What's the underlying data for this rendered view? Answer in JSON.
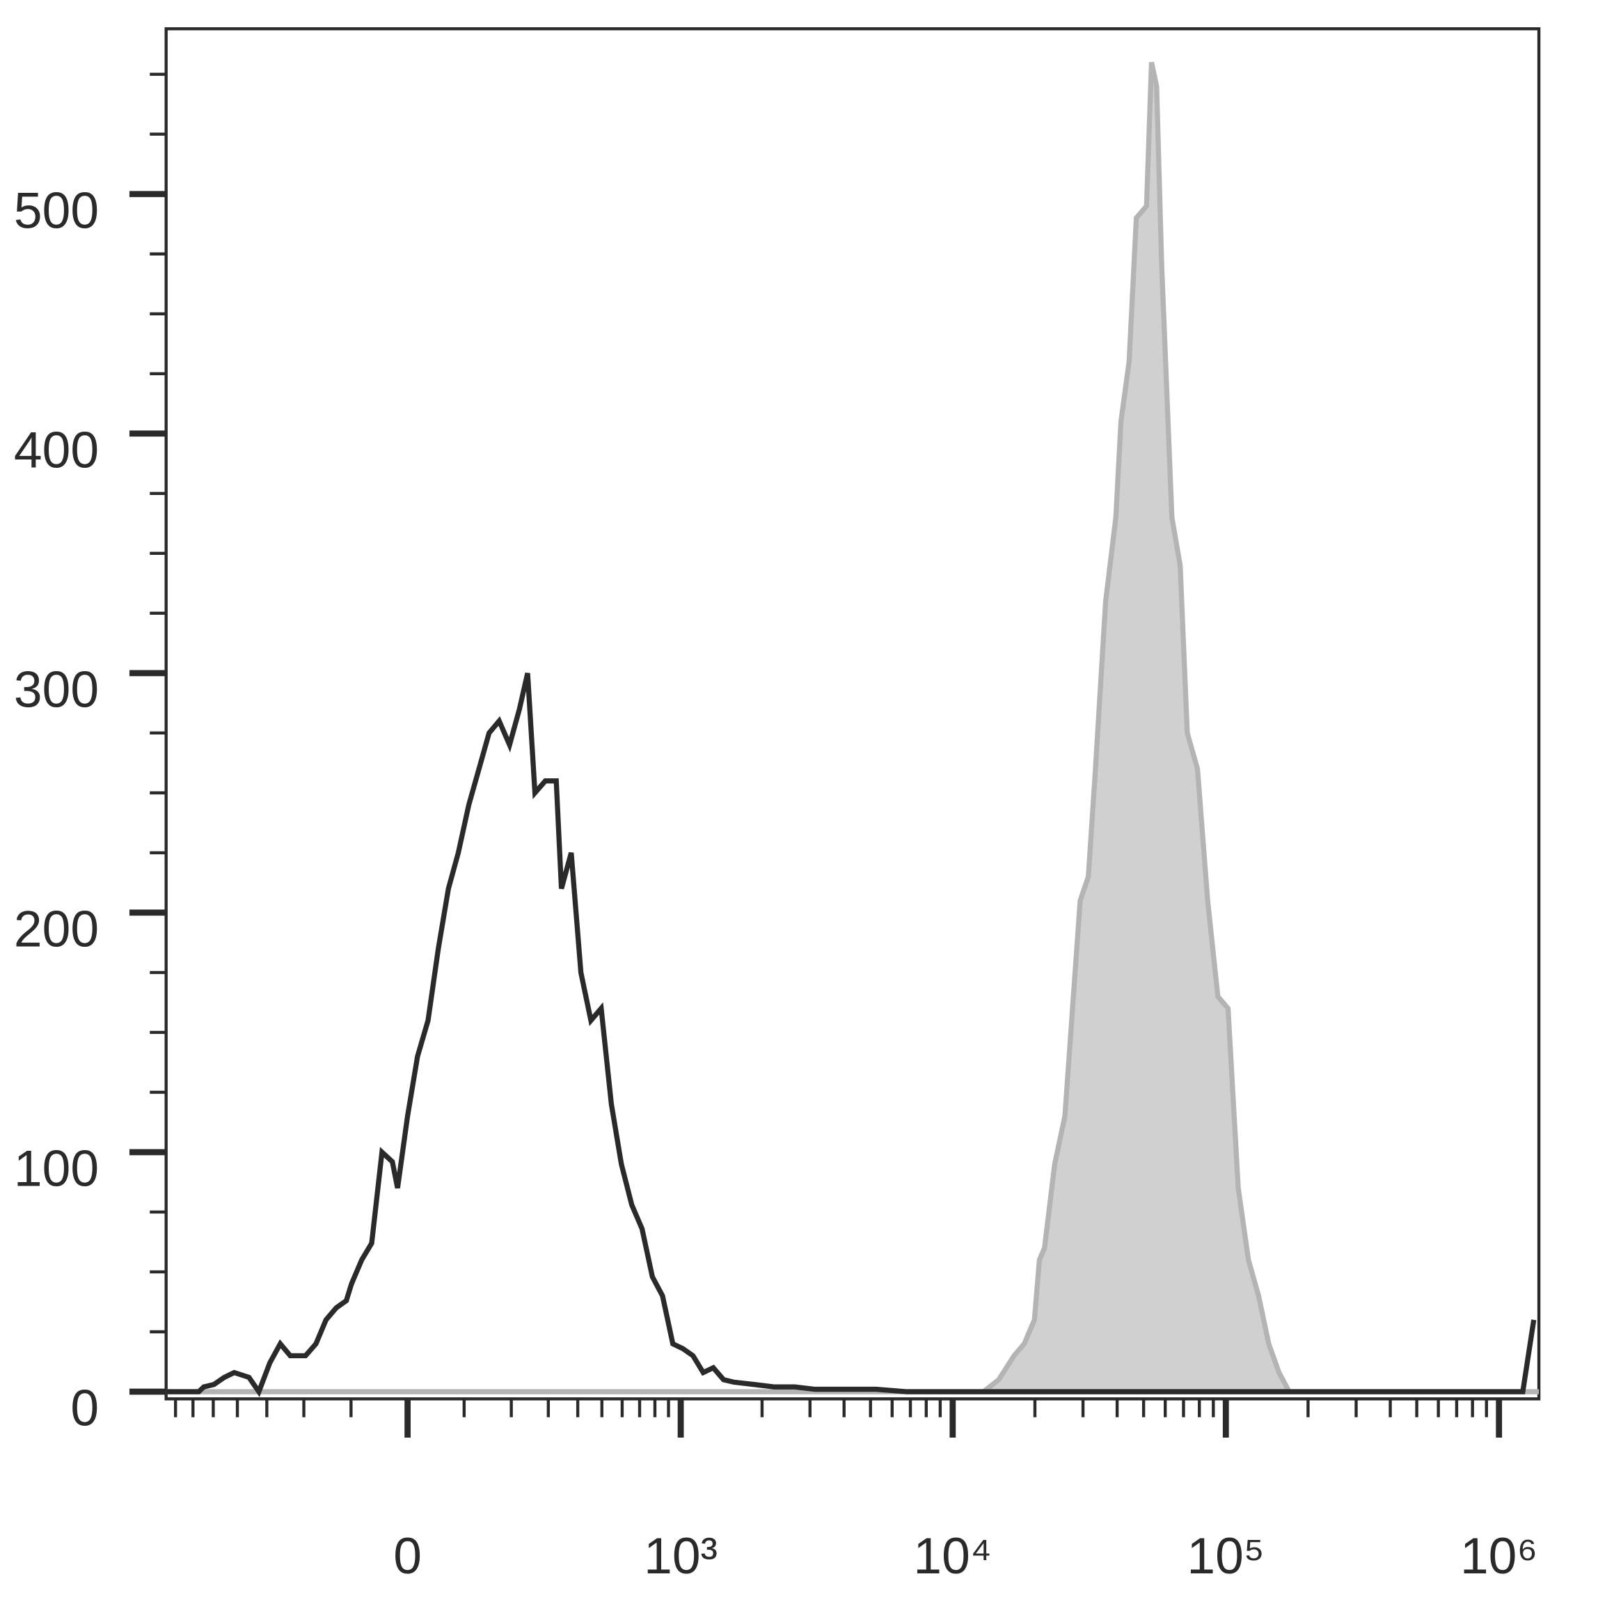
{
  "chart_data": {
    "type": "line",
    "xscale": "biexponential",
    "xlim": [
      -760,
      1400000
    ],
    "ylim": [
      -3,
      569
    ],
    "xticks": [
      0,
      {
        "value": 1000,
        "label": "10³"
      },
      {
        "value": 10000,
        "label": "10⁴"
      },
      {
        "value": 100000,
        "label": "10⁵"
      },
      {
        "value": 1000000,
        "label": "10⁶"
      }
    ],
    "xminorticks": [
      -700,
      -600,
      -500,
      -400,
      -300,
      -200,
      -100,
      100,
      200,
      300,
      400,
      500,
      600,
      700,
      800,
      900,
      2000,
      3000,
      4000,
      5000,
      6000,
      7000,
      8000,
      9000,
      20000,
      30000,
      40000,
      50000,
      60000,
      70000,
      80000,
      90000,
      200000,
      300000,
      400000,
      500000,
      600000,
      700000,
      800000,
      900000
    ],
    "yticks": [
      0,
      100,
      200,
      300,
      400,
      500
    ],
    "yminorticks": [
      25,
      50,
      75,
      125,
      150,
      175,
      225,
      250,
      275,
      325,
      350,
      375,
      425,
      450,
      475,
      525,
      550
    ],
    "series": [
      {
        "color": "#2a2a2a",
        "fill": false,
        "x": [
          -760,
          -570,
          -545,
          -497,
          -452,
          -412,
          -358,
          -325,
          -291,
          -261,
          -234,
          -196,
          -172,
          -150,
          -129,
          -109,
          -99,
          -80,
          -62,
          -44,
          -26,
          -17,
          0,
          17,
          35,
          53,
          71,
          89,
          109,
          129,
          150,
          172,
          196,
          220,
          241,
          261,
          291,
          325,
          342,
          376,
          412,
          452,
          497,
          545,
          596,
          653,
          715,
          782,
          855,
          934,
          1018,
          1111,
          1212,
          1321,
          1442,
          1573,
          1871,
          2222,
          2646,
          3131,
          4060,
          5252,
          6807,
          8807,
          17513,
          1222500,
          1340700
        ],
        "values": [
          0,
          0,
          2,
          3,
          6,
          8,
          6,
          0,
          12,
          20,
          15,
          15,
          20,
          30,
          35,
          38,
          45,
          55,
          62,
          100,
          96,
          85,
          115,
          140,
          155,
          185,
          210,
          225,
          245,
          260,
          275,
          280,
          270,
          285,
          300,
          250,
          255,
          255,
          210,
          225,
          175,
          155,
          160,
          120,
          95,
          78,
          68,
          48,
          40,
          20,
          18,
          15,
          8,
          10,
          5,
          4,
          3,
          2,
          2,
          1,
          1,
          1,
          0,
          0,
          0,
          0,
          30
        ]
      },
      {
        "color": "#b4b4b4",
        "fill": "#d0d0d0",
        "x": [
          -760,
          12960,
          14740,
          16770,
          18270,
          19910,
          20770,
          21680,
          23630,
          25750,
          26880,
          29290,
          31380,
          33320,
          36310,
          39570,
          41310,
          44240,
          47010,
          51240,
          53460,
          55800,
          58260,
          63490,
          68020,
          72240,
          78720,
          85790,
          93490,
          101880,
          111030,
          121000,
          131870,
          143600,
          156500,
          170560,
          185840,
          1400000
        ],
        "values": [
          0,
          0,
          5,
          15,
          20,
          30,
          55,
          60,
          95,
          115,
          145,
          205,
          215,
          260,
          330,
          365,
          405,
          430,
          490,
          495,
          555,
          545,
          470,
          365,
          345,
          275,
          260,
          205,
          165,
          160,
          85,
          55,
          40,
          20,
          8,
          0,
          0,
          0
        ]
      }
    ]
  }
}
